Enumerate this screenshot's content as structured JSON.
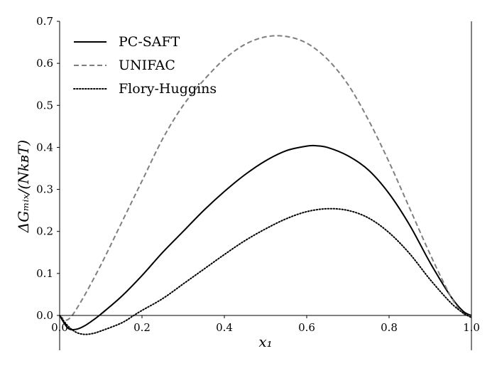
{
  "chart_data": {
    "type": "line",
    "xlabel": "x₁",
    "ylabel": "ΔGₘᵢₓ/(NkʙT)",
    "xlim": [
      0.0,
      1.0
    ],
    "ylim": [
      -0.085,
      0.7
    ],
    "x_ticks": [
      0.0,
      0.2,
      0.4,
      0.6,
      0.8,
      1.0
    ],
    "x_tick_labels": [
      "0.0",
      "0.2",
      "0.4",
      "0.6",
      "0.8",
      "1.0"
    ],
    "y_ticks": [
      0.0,
      0.1,
      0.2,
      0.3,
      0.4,
      0.5,
      0.6,
      0.7
    ],
    "y_tick_labels": [
      "0.0",
      "0.1",
      "0.2",
      "0.3",
      "0.4",
      "0.5",
      "0.6",
      "0.7"
    ],
    "grid": false,
    "legend_position": "top-left",
    "series": [
      {
        "name": "PC-SAFT",
        "color": "#000000",
        "style": "solid",
        "x": [
          0.0,
          0.02,
          0.04,
          0.06,
          0.08,
          0.1,
          0.15,
          0.2,
          0.25,
          0.3,
          0.35,
          0.4,
          0.45,
          0.5,
          0.55,
          0.6,
          0.62,
          0.65,
          0.7,
          0.75,
          0.8,
          0.85,
          0.9,
          0.95,
          0.98,
          1.0
        ],
        "y": [
          0.0,
          -0.03,
          -0.033,
          -0.025,
          -0.012,
          0.003,
          0.045,
          0.095,
          0.15,
          0.2,
          0.25,
          0.295,
          0.335,
          0.368,
          0.392,
          0.403,
          0.404,
          0.4,
          0.38,
          0.346,
          0.29,
          0.215,
          0.125,
          0.045,
          0.01,
          0.0
        ]
      },
      {
        "name": "UNIFAC",
        "color": "#7f7f7f",
        "style": "dashed",
        "x": [
          0.0,
          0.02,
          0.05,
          0.1,
          0.15,
          0.2,
          0.25,
          0.3,
          0.35,
          0.4,
          0.45,
          0.5,
          0.55,
          0.6,
          0.65,
          0.7,
          0.75,
          0.8,
          0.85,
          0.9,
          0.95,
          0.98,
          1.0
        ],
        "y": [
          0.0,
          -0.01,
          0.03,
          0.12,
          0.22,
          0.32,
          0.42,
          0.5,
          0.56,
          0.61,
          0.645,
          0.663,
          0.664,
          0.648,
          0.61,
          0.55,
          0.465,
          0.365,
          0.255,
          0.145,
          0.045,
          0.005,
          0.0
        ]
      },
      {
        "name": "Flory-Huggins",
        "color": "#000000",
        "style": "dotted",
        "x": [
          0.0,
          0.02,
          0.04,
          0.06,
          0.08,
          0.1,
          0.15,
          0.18,
          0.2,
          0.25,
          0.3,
          0.35,
          0.4,
          0.45,
          0.5,
          0.55,
          0.6,
          0.65,
          0.7,
          0.75,
          0.8,
          0.85,
          0.9,
          0.95,
          0.98,
          1.0
        ],
        "y": [
          0.0,
          -0.025,
          -0.04,
          -0.045,
          -0.043,
          -0.037,
          -0.018,
          0.0,
          0.012,
          0.04,
          0.075,
          0.11,
          0.145,
          0.178,
          0.206,
          0.23,
          0.247,
          0.254,
          0.25,
          0.232,
          0.197,
          0.147,
          0.085,
          0.03,
          0.006,
          -0.005
        ]
      }
    ]
  }
}
